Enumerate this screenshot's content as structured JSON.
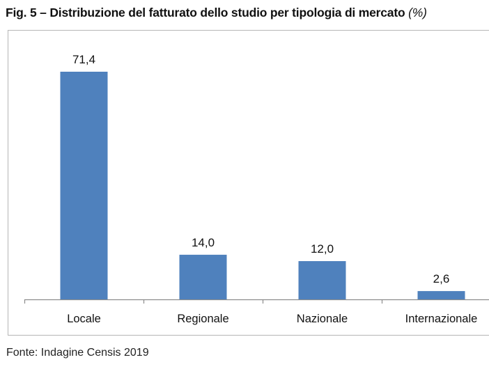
{
  "chart_data": {
    "type": "bar",
    "title": "Fig. 5 – Distribuzione del fatturato dello studio per tipologia di mercato",
    "title_suffix": "(%)",
    "categories": [
      "Locale",
      "Regionale",
      "Nazionale",
      "Internazionale"
    ],
    "values": [
      71.4,
      14.0,
      12.0,
      2.6
    ],
    "value_labels": [
      "71,4",
      "14,0",
      "12,0",
      "2,6"
    ],
    "xlabel": "",
    "ylabel": "",
    "ylim": [
      0,
      71.4
    ],
    "grid": false,
    "bar_color": "#4f81bd",
    "source": "Fonte: Indagine Censis 2019"
  }
}
